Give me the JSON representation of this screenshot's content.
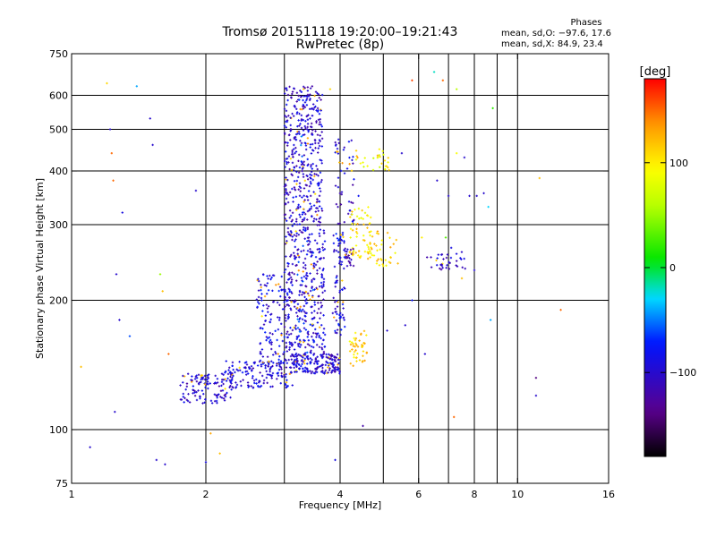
{
  "chart_data": {
    "type": "scatter",
    "title": "Tromsø 20151118 19:20:00–19:21:43",
    "subtitle": "RwPretec (8p)",
    "xlabel": "Frequency [MHz]",
    "ylabel": "Stationary phase Virtual Height [km]",
    "x_scale": "log",
    "y_scale": "log",
    "xlim": [
      1,
      16
    ],
    "ylim": [
      75,
      750
    ],
    "x_ticks": [
      1,
      2,
      4,
      6,
      8,
      10,
      16
    ],
    "y_ticks": [
      75,
      100,
      200,
      300,
      400,
      500,
      600,
      750
    ],
    "x_tick_labels": [
      "1",
      "2",
      "4",
      "6",
      "8",
      "10",
      "16"
    ],
    "y_tick_labels": [
      "75",
      "100",
      "200",
      "300",
      "400",
      "500",
      "600",
      "750"
    ],
    "grid": true,
    "colorbar": {
      "label": "[deg]",
      "range": [
        -180,
        180
      ],
      "ticks": [
        100,
        0,
        -100
      ],
      "tick_labels": [
        "100",
        "0",
        "−100"
      ]
    },
    "phase_stats": {
      "title": "Phases",
      "line1": "mean, sd,O:  −97.6, 17.6",
      "line2": "mean, sd,X:  84.9, 23.4"
    },
    "clusters": [
      {
        "f": [
          1.75,
          2.3
        ],
        "h": [
          115,
          135
        ],
        "phase": -100,
        "count": 120
      },
      {
        "f": [
          2.2,
          3.2
        ],
        "h": [
          125,
          145
        ],
        "phase": -95,
        "count": 160
      },
      {
        "f": [
          2.6,
          3.1
        ],
        "h": [
          140,
          230
        ],
        "phase": -90,
        "count": 150
      },
      {
        "f": [
          3.1,
          4.0
        ],
        "h": [
          135,
          150
        ],
        "phase": -100,
        "count": 180
      },
      {
        "f": [
          3.0,
          3.7
        ],
        "h": [
          150,
          300
        ],
        "phase": -100,
        "count": 330
      },
      {
        "f": [
          3.0,
          3.65
        ],
        "h": [
          300,
          630
        ],
        "phase": -100,
        "count": 380
      },
      {
        "f": [
          3.2,
          3.5
        ],
        "h": [
          150,
          600
        ],
        "phase": -70,
        "count": 50
      },
      {
        "f": [
          3.85,
          4.1
        ],
        "h": [
          160,
          290
        ],
        "phase": -90,
        "count": 80
      },
      {
        "f": [
          3.9,
          4.3
        ],
        "h": [
          300,
          480
        ],
        "phase": -100,
        "count": 50
      },
      {
        "f": [
          4.2,
          4.7
        ],
        "h": [
          250,
          330
        ],
        "phase": 100,
        "count": 50
      },
      {
        "f": [
          4.2,
          4.6
        ],
        "h": [
          140,
          170
        ],
        "phase": 110,
        "count": 45
      },
      {
        "f": [
          4.6,
          5.4
        ],
        "h": [
          240,
          290
        ],
        "phase": 110,
        "count": 45
      },
      {
        "f": [
          4.3,
          5.2
        ],
        "h": [
          400,
          450
        ],
        "phase": 90,
        "count": 30
      },
      {
        "f": [
          6.2,
          7.8
        ],
        "h": [
          235,
          260
        ],
        "phase": -100,
        "count": 35
      },
      {
        "f": [
          4.1,
          4.3
        ],
        "h": [
          240,
          265
        ],
        "phase": -120,
        "count": 25
      }
    ],
    "sparse_points": [
      [
        1.1,
        91,
        -100
      ],
      [
        1.2,
        640,
        110
      ],
      [
        1.23,
        440,
        150
      ],
      [
        1.24,
        380,
        150
      ],
      [
        1.3,
        320,
        -90
      ],
      [
        1.4,
        630,
        -40
      ],
      [
        1.5,
        530,
        -100
      ],
      [
        1.52,
        460,
        -100
      ],
      [
        1.58,
        230,
        50
      ],
      [
        1.6,
        210,
        120
      ],
      [
        1.65,
        150,
        150
      ],
      [
        1.25,
        110,
        -100
      ],
      [
        1.55,
        85,
        -100
      ],
      [
        1.62,
        83,
        -100
      ],
      [
        1.9,
        360,
        -100
      ],
      [
        2.0,
        84,
        -90
      ],
      [
        2.05,
        98,
        130
      ],
      [
        2.15,
        88,
        120
      ],
      [
        1.05,
        140,
        120
      ],
      [
        1.22,
        500,
        -100
      ],
      [
        1.26,
        230,
        -100
      ],
      [
        1.28,
        180,
        -100
      ],
      [
        1.35,
        165,
        -60
      ],
      [
        6.5,
        680,
        -20
      ],
      [
        6.8,
        650,
        150
      ],
      [
        7.3,
        620,
        60
      ],
      [
        7.3,
        440,
        90
      ],
      [
        7.6,
        430,
        -100
      ],
      [
        7.8,
        350,
        -100
      ],
      [
        8.1,
        350,
        -100
      ],
      [
        8.4,
        355,
        -100
      ],
      [
        8.6,
        330,
        -30
      ],
      [
        8.8,
        560,
        20
      ],
      [
        8.7,
        180,
        -40
      ],
      [
        6.2,
        150,
        -100
      ],
      [
        7.2,
        107,
        150
      ],
      [
        6.6,
        380,
        -100
      ],
      [
        7.0,
        350,
        -100
      ],
      [
        11.0,
        132,
        -140
      ],
      [
        11.0,
        120,
        -100
      ],
      [
        12.5,
        190,
        150
      ],
      [
        11.2,
        385,
        120
      ],
      [
        5.8,
        650,
        160
      ],
      [
        4.5,
        102,
        -120
      ],
      [
        3.9,
        85,
        -90
      ],
      [
        4.4,
        350,
        -80
      ],
      [
        5.5,
        440,
        -100
      ],
      [
        6.1,
        280,
        100
      ],
      [
        5.8,
        200,
        -80
      ],
      [
        5.6,
        175,
        -100
      ],
      [
        5.1,
        170,
        -100
      ],
      [
        7.1,
        265,
        -90
      ],
      [
        6.9,
        280,
        30
      ],
      [
        7.5,
        225,
        120
      ],
      [
        8.0,
        235,
        -100
      ],
      [
        3.8,
        620,
        110
      ]
    ]
  }
}
